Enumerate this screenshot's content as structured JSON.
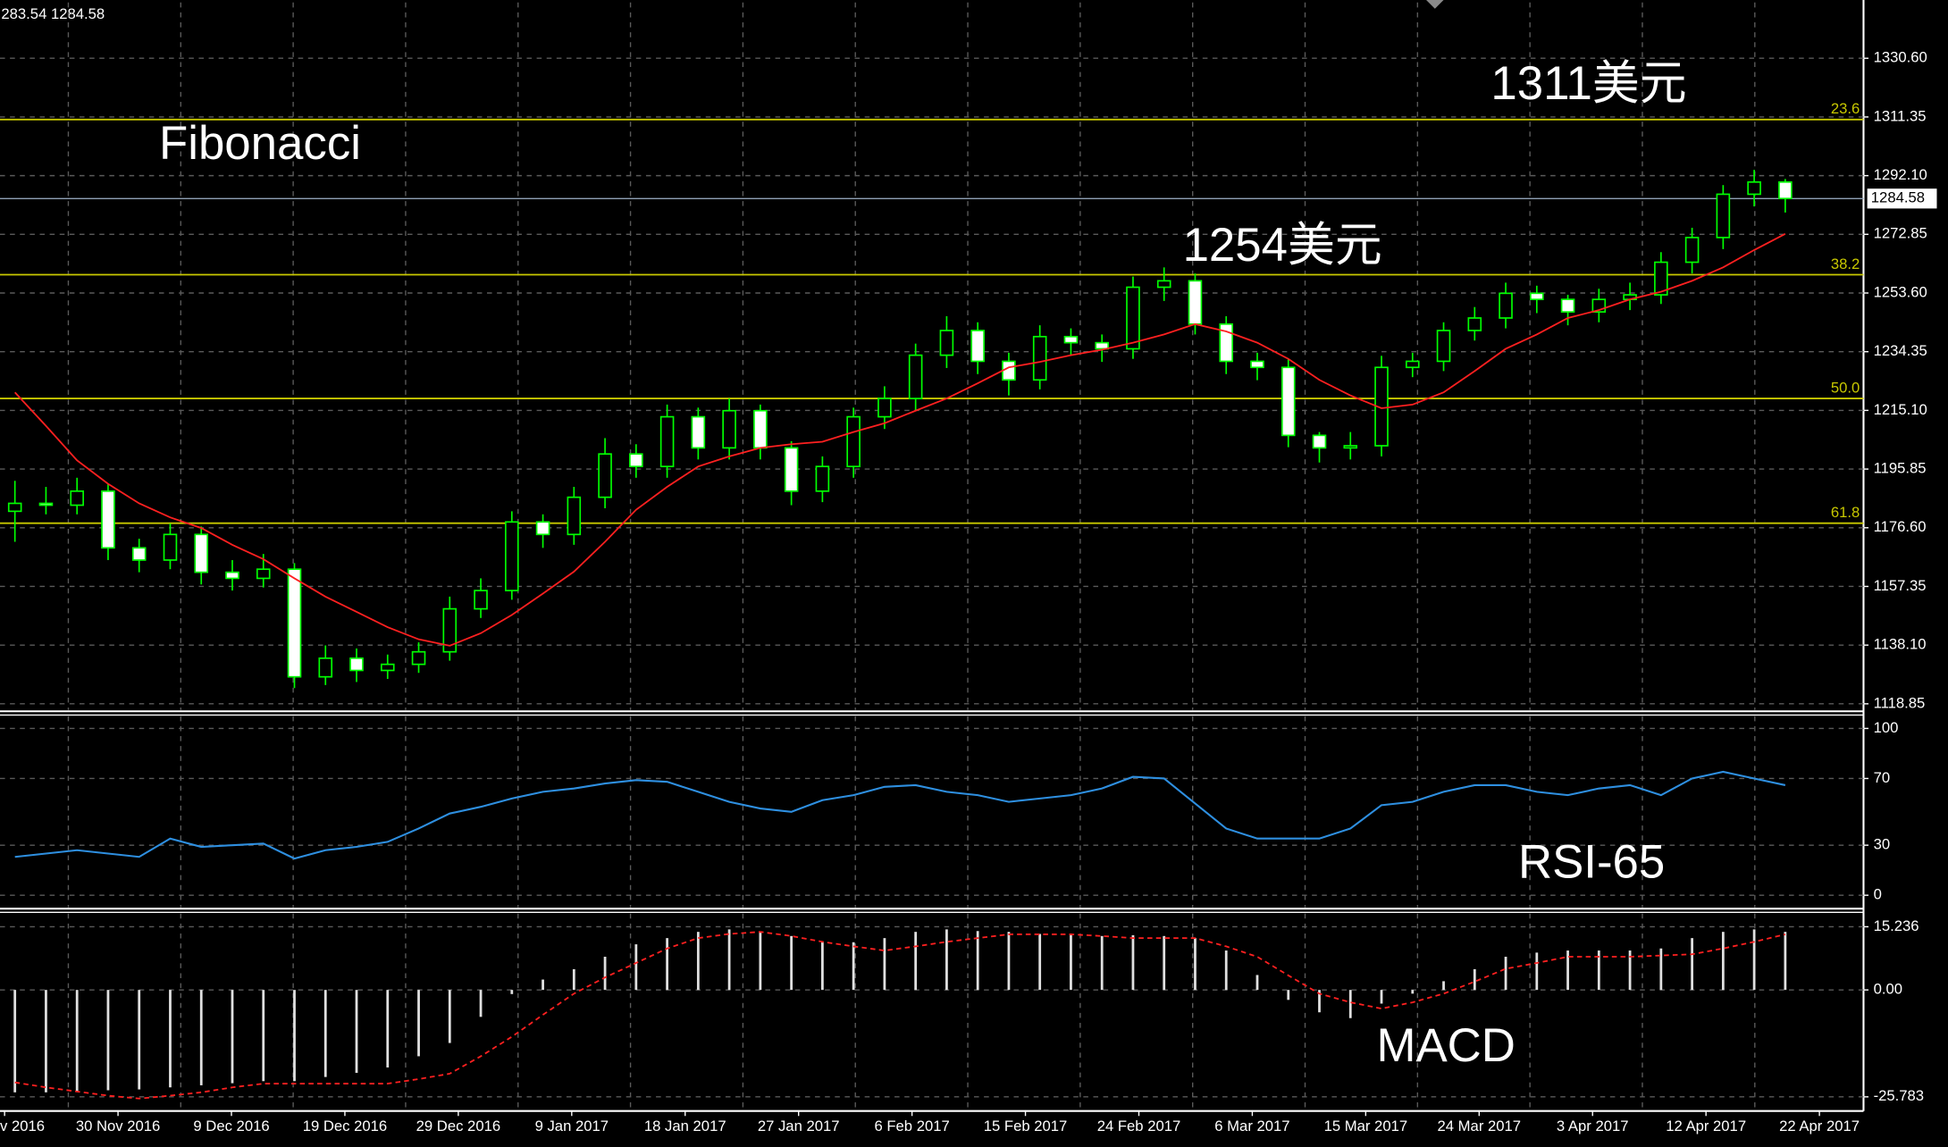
{
  "header_text": "283.54 1284.58",
  "chart_data": [
    {
      "type": "candlestick",
      "annotations": [
        "Fibonacci",
        "1311美元",
        "1254美元"
      ],
      "open": [
        1182.0,
        1184.6,
        1184.0,
        1188.6,
        1170.0,
        1166.0,
        1174.4,
        1162.0,
        1160.0,
        1163.0,
        1127.7,
        1133.8,
        1129.8,
        1131.8,
        1135.9,
        1150.0,
        1156.0,
        1178.5,
        1174.4,
        1186.6,
        1200.8,
        1196.7,
        1213.0,
        1202.8,
        1215.0,
        1202.8,
        1188.6,
        1196.7,
        1213.0,
        1219.0,
        1233.2,
        1241.3,
        1231.2,
        1225.1,
        1239.3,
        1237.3,
        1235.3,
        1255.5,
        1257.6,
        1243.4,
        1231.2,
        1229.2,
        1206.9,
        1202.8,
        1203.5,
        1229.2,
        1231.2,
        1241.3,
        1245.4,
        1253.5,
        1251.5,
        1247.4,
        1251.5,
        1253.0,
        1263.7,
        1271.8,
        1286.0,
        1290.0
      ],
      "high": [
        1192,
        1190,
        1193,
        1191,
        1173,
        1178,
        1177,
        1166,
        1168,
        1165,
        1138,
        1137,
        1135,
        1139,
        1154,
        1160,
        1182,
        1181,
        1190,
        1206,
        1204,
        1217,
        1216,
        1219,
        1217,
        1205,
        1200,
        1216,
        1223,
        1237,
        1246,
        1244,
        1234,
        1243,
        1242,
        1240,
        1259,
        1262,
        1260,
        1246,
        1234,
        1232,
        1208,
        1208,
        1233,
        1234,
        1244,
        1249,
        1257,
        1256,
        1253,
        1255,
        1257,
        1267,
        1275,
        1289,
        1294,
        1291
      ],
      "low": [
        1172,
        1181,
        1181,
        1166,
        1162,
        1163,
        1158,
        1156,
        1157,
        1124,
        1125,
        1126,
        1127,
        1129,
        1133,
        1147,
        1153,
        1170,
        1171,
        1183,
        1193,
        1193,
        1199,
        1199,
        1199,
        1184,
        1185,
        1193,
        1209,
        1215,
        1229,
        1227,
        1220,
        1222,
        1233,
        1231,
        1232,
        1251,
        1240,
        1227,
        1225,
        1203,
        1198,
        1199,
        1200,
        1226,
        1228,
        1238,
        1242,
        1247,
        1243,
        1244,
        1248,
        1250,
        1260,
        1268,
        1282,
        1280
      ],
      "close": [
        1184.6,
        1184.0,
        1188.6,
        1170.0,
        1166.0,
        1174.4,
        1162.0,
        1160.0,
        1163.0,
        1127.7,
        1133.8,
        1129.8,
        1131.8,
        1135.9,
        1150.0,
        1156.0,
        1178.5,
        1174.4,
        1186.6,
        1200.8,
        1196.7,
        1213.0,
        1202.8,
        1215.0,
        1202.8,
        1188.6,
        1196.7,
        1213.0,
        1219.0,
        1233.2,
        1241.3,
        1231.2,
        1225.1,
        1239.3,
        1237.3,
        1235.3,
        1255.5,
        1257.6,
        1243.4,
        1231.2,
        1229.2,
        1206.9,
        1202.8,
        1203.5,
        1229.2,
        1231.2,
        1241.3,
        1245.4,
        1253.5,
        1251.5,
        1247.4,
        1251.5,
        1253.0,
        1263.7,
        1271.8,
        1286.0,
        1290.0,
        1284.6
      ],
      "ma": [
        1221,
        1210,
        1198.7,
        1191,
        1184.6,
        1180,
        1176.5,
        1171,
        1166.3,
        1160,
        1154,
        1149,
        1144,
        1140,
        1137.9,
        1142,
        1148,
        1155,
        1162.2,
        1172,
        1182.5,
        1190,
        1196.7,
        1200,
        1202.8,
        1204,
        1204.8,
        1208,
        1210.9,
        1215,
        1219,
        1224,
        1229.2,
        1231,
        1233.2,
        1235,
        1237.3,
        1240,
        1243.4,
        1241,
        1237.3,
        1232,
        1225.1,
        1220,
        1215.8,
        1217,
        1221,
        1228,
        1235.3,
        1240,
        1245.4,
        1248,
        1251.5,
        1254,
        1257.6,
        1262,
        1267.7,
        1273
      ],
      "up_color": "#00ff00",
      "down_color": "#ffffff",
      "ma_color": "#ff2020",
      "fib_color": "#c8c800",
      "fib_levels": [
        {
          "name": "23.6",
          "price": 1310.5
        },
        {
          "name": "38.2",
          "price": 1259.6
        },
        {
          "name": "50.0",
          "price": 1219.0
        },
        {
          "name": "61.8",
          "price": 1178.1
        }
      ],
      "current_price": 1284.58,
      "ylim": [
        1116.8,
        1348.9
      ],
      "yticks": [
        {
          "value": 1330.6,
          "label": "1330.60"
        },
        {
          "value": 1311.35,
          "label": "1311.35"
        },
        {
          "value": 1292.1,
          "label": "1292.10"
        },
        {
          "value": 1272.85,
          "label": "1272.85"
        },
        {
          "value": 1253.6,
          "label": "1253.60"
        },
        {
          "value": 1234.35,
          "label": "1234.35"
        },
        {
          "value": 1215.1,
          "label": "1215.10"
        },
        {
          "value": 1195.85,
          "label": "1195.85"
        },
        {
          "value": 1176.6,
          "label": "1176.60"
        },
        {
          "value": 1157.35,
          "label": "1157.35"
        },
        {
          "value": 1138.1,
          "label": "1138.10"
        },
        {
          "value": 1118.85,
          "label": "1118.85"
        }
      ],
      "x_labels": [
        "v 2016",
        "30 Nov 2016",
        "9 Dec 2016",
        "19 Dec 2016",
        "29 Dec 2016",
        "9 Jan 2017",
        "18 Jan 2017",
        "27 Jan 2017",
        "6 Feb 2017",
        "15 Feb 2017",
        "24 Feb 2017",
        "6 Mar 2017",
        "15 Mar 2017",
        "24 Mar 2017",
        "3 Apr 2017",
        "12 Apr 2017",
        "22 Apr 2017"
      ],
      "grid": true
    },
    {
      "type": "line",
      "annotation": "RSI-65",
      "color": "#2e8fe0",
      "values": [
        23,
        25,
        27,
        25,
        23,
        34,
        29,
        30,
        31,
        22,
        27,
        29,
        32,
        40,
        49,
        53,
        58,
        62,
        64,
        67,
        69,
        68,
        62,
        56,
        52,
        50,
        57,
        60,
        65,
        66,
        62,
        60,
        56,
        58,
        60,
        64,
        71,
        70,
        55,
        40,
        34,
        34,
        34,
        40,
        54,
        56,
        62,
        66,
        66,
        62,
        60,
        64,
        66,
        60,
        70,
        74,
        70,
        66
      ],
      "ylim": [
        -7.3,
        107.3
      ],
      "yticks": [
        100,
        70,
        30,
        0
      ],
      "grid": true
    },
    {
      "type": "bar",
      "annotation": "MACD",
      "color": "#e0e0e0",
      "signal_color": "#ff2020",
      "values": [
        -24.7,
        -24.7,
        -24.5,
        -24.2,
        -24,
        -23.5,
        -23,
        -22.5,
        -22,
        -22,
        -21,
        -20,
        -18.7,
        -16,
        -12.8,
        -6.5,
        -1,
        2.5,
        5,
        8,
        11,
        12.5,
        14,
        14.6,
        14,
        13,
        11.6,
        11.5,
        12.5,
        14,
        14.6,
        14.2,
        14,
        13.5,
        13.4,
        13,
        13.2,
        13,
        12.5,
        9.5,
        3.6,
        -2.4,
        -5.4,
        -6.8,
        -3.3,
        -0.9,
        2.1,
        5,
        8,
        9,
        9.5,
        9.5,
        9.5,
        10,
        12.5,
        14,
        14.6,
        14
      ],
      "signal": [
        -22.3,
        -23.5,
        -24.5,
        -25.5,
        -26.2,
        -25.5,
        -24.7,
        -23.5,
        -22.6,
        -22.6,
        -22.6,
        -22.6,
        -22.6,
        -21.5,
        -20.2,
        -16,
        -11.3,
        -6,
        -0.9,
        3,
        6.5,
        10,
        12.5,
        13.5,
        14,
        13,
        11.6,
        10.5,
        9.5,
        10.5,
        11.6,
        12.5,
        13.4,
        13.4,
        13.4,
        13,
        12.5,
        12.5,
        12.5,
        10.5,
        8,
        3.5,
        -0.9,
        -3,
        -4.5,
        -3,
        -0.9,
        2,
        5.1,
        6.5,
        8,
        8,
        8,
        8.3,
        8.6,
        10,
        11.6,
        13.4
      ],
      "ylim": [
        -29.2,
        18.4
      ],
      "yticks": [
        15.236,
        {
          "value": 0,
          "label": "0.00"
        },
        -25.783
      ],
      "grid": true
    }
  ]
}
